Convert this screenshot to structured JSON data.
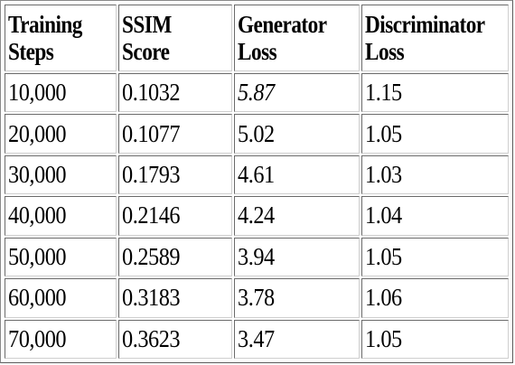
{
  "table": {
    "headers": [
      [
        "Training",
        "Steps"
      ],
      [
        "SSIM",
        "Score"
      ],
      [
        "Generator",
        "Loss"
      ],
      [
        "Discriminator",
        "Loss"
      ]
    ],
    "rows": [
      {
        "steps": "10,000",
        "ssim": "0.1032",
        "gen_loss": "5.87",
        "disc_loss": "1.15"
      },
      {
        "steps": "20,000",
        "ssim": "0.1077",
        "gen_loss": "5.02",
        "disc_loss": "1.05"
      },
      {
        "steps": "30,000",
        "ssim": "0.1793",
        "gen_loss": "4.61",
        "disc_loss": "1.03"
      },
      {
        "steps": "40,000",
        "ssim": "0.2146",
        "gen_loss": "4.24",
        "disc_loss": "1.04"
      },
      {
        "steps": "50,000",
        "ssim": "0.2589",
        "gen_loss": "3.94",
        "disc_loss": "1.05"
      },
      {
        "steps": "60,000",
        "ssim": "0.3183",
        "gen_loss": "3.78",
        "disc_loss": "1.06"
      },
      {
        "steps": "70,000",
        "ssim": "0.3623",
        "gen_loss": "3.47",
        "disc_loss": "1.05"
      }
    ]
  }
}
